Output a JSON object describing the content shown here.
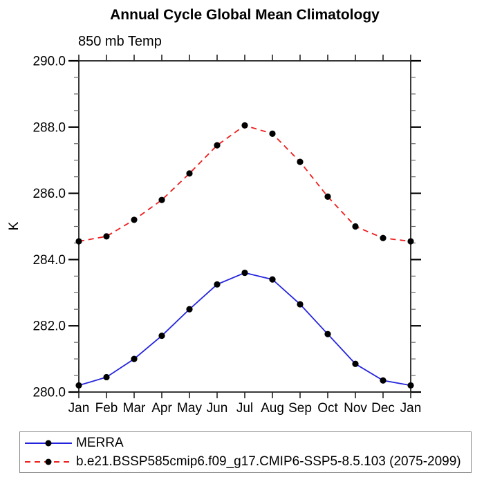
{
  "chart_data": {
    "type": "line",
    "title": "Annual Cycle Global Mean Climatology",
    "subtitle": "850 mb Temp",
    "ylabel": "K",
    "xlabel": "",
    "grid": false,
    "legend_position": "bottom-left boxed",
    "ylim": [
      280,
      290
    ],
    "y_minor_step": 0.5,
    "y_major_step": 2,
    "y_major_ticks": [
      {
        "value": 290,
        "label": "290.0"
      },
      {
        "value": 288,
        "label": "288.0"
      },
      {
        "value": 286,
        "label": "286.0"
      },
      {
        "value": 284,
        "label": "284.0"
      },
      {
        "value": 282,
        "label": "282.0"
      },
      {
        "value": 280,
        "label": "280.0"
      }
    ],
    "x_tick_labels": [
      "Jan",
      "Feb",
      "Mar",
      "Apr",
      "May",
      "Jun",
      "Jul",
      "Aug",
      "Sep",
      "Oct",
      "Nov",
      "Dec",
      "Jan"
    ],
    "series": [
      {
        "name": "MERRA",
        "color": "#2323dd",
        "line_style": "solid",
        "marker": "filled-circle",
        "marker_color": "#000000",
        "values": [
          280.2,
          280.45,
          281.0,
          281.7,
          282.5,
          283.25,
          283.6,
          283.4,
          282.65,
          281.75,
          280.85,
          280.35,
          280.2
        ]
      },
      {
        "name": "b.e21.BSSP585cmip6.f09_g17.CMIP6-SSP5-8.5.103 (2075-2099)",
        "color": "#ee1c1c",
        "line_style": "dashed",
        "marker": "filled-circle",
        "marker_color": "#000000",
        "values": [
          284.55,
          284.7,
          285.2,
          285.8,
          286.6,
          287.45,
          288.05,
          287.8,
          286.95,
          285.9,
          285.0,
          284.65,
          284.55
        ]
      }
    ]
  }
}
